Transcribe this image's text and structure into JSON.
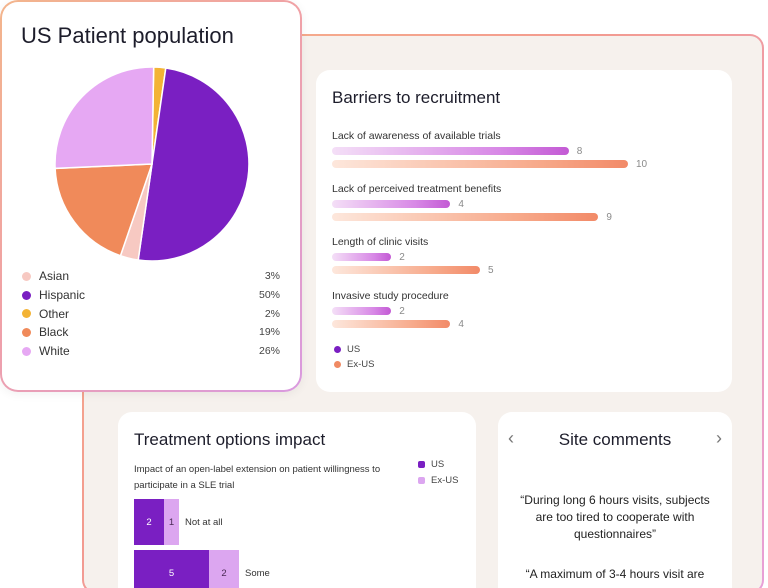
{
  "pie_card": {
    "title": "US Patient population"
  },
  "barriers": {
    "title": "Barriers to recruitment",
    "legend": [
      {
        "label": "US",
        "color": "#7a1fc2"
      },
      {
        "label": "Ex-US",
        "color": "#f08a63"
      }
    ]
  },
  "treatment": {
    "title": "Treatment options impact",
    "description": "Impact of an open-label extension on patient willingness to participate in a SLE trial",
    "legend": [
      {
        "label": "US",
        "color": "#7a1fc2"
      },
      {
        "label": "Ex-US",
        "color": "#dca6f0"
      }
    ]
  },
  "comments": {
    "title": "Site comments",
    "prev_icon": "chevron-left-icon",
    "next_icon": "chevron-right-icon",
    "quotes": [
      "“During long 6 hours visits, subjects are too tired to cooperate with questionnaires”",
      "“A maximum of 3-4 hours visit are"
    ]
  },
  "chart_data": [
    {
      "type": "pie",
      "title": "US Patient population",
      "categories": [
        "Asian",
        "Hispanic",
        "Other",
        "Black",
        "White"
      ],
      "values": [
        3,
        50,
        2,
        19,
        26
      ],
      "labels": [
        "3%",
        "50%",
        "2%",
        "19%",
        "26%"
      ],
      "colors": [
        "#f7c9c2",
        "#7a1fc2",
        "#f3b335",
        "#f08a5a",
        "#e6a8f3"
      ],
      "legend_position": "bottom"
    },
    {
      "type": "bar",
      "orientation": "horizontal",
      "title": "Barriers to recruitment",
      "categories": [
        "Lack of awareness of available trials",
        "Lack of perceived treatment benefits",
        "Length of clinic visits",
        "Invasive study procedure"
      ],
      "series": [
        {
          "name": "US",
          "values": [
            8,
            4,
            2,
            2
          ]
        },
        {
          "name": "Ex-US",
          "values": [
            10,
            9,
            5,
            4
          ]
        }
      ],
      "xlim": [
        0,
        10
      ],
      "legend_position": "bottom-left"
    },
    {
      "type": "bar",
      "orientation": "horizontal",
      "stacked": true,
      "title": "Treatment options impact",
      "categories": [
        "Not at all",
        "Some"
      ],
      "series": [
        {
          "name": "US",
          "values": [
            2,
            5
          ]
        },
        {
          "name": "Ex-US",
          "values": [
            1,
            2
          ]
        }
      ],
      "legend_position": "top-right"
    }
  ]
}
